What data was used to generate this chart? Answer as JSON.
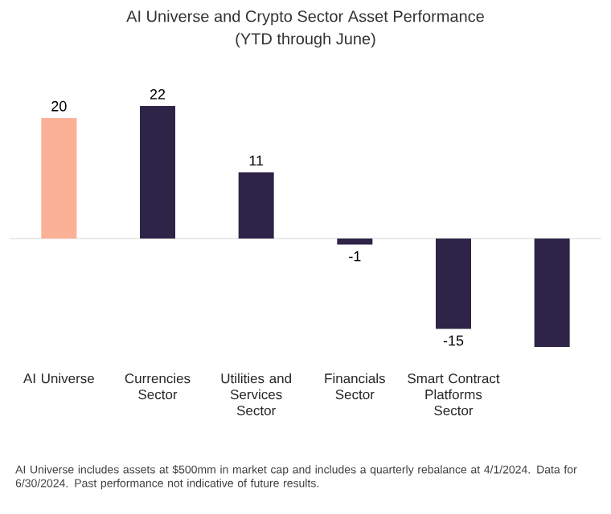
{
  "chart_data": {
    "type": "bar",
    "title": "AI Universe and Crypto Sector Asset Performance",
    "subtitle": "(YTD through June)",
    "categories": [
      "AI Universe",
      "Currencies Sector",
      "Utilities and Services Sector",
      "Financials Sector",
      "Smart Contract Platforms Sector",
      null
    ],
    "values": [
      20,
      22,
      11,
      -1,
      -15,
      -18
    ],
    "colors": [
      "#fbb196",
      "#2e2447",
      "#2e2447",
      "#2e2447",
      "#2e2447",
      "#2e2447"
    ],
    "value_labels": [
      "20",
      "22",
      "11",
      "-1",
      "-15",
      null
    ],
    "annotations": [
      "AI Universe includes assets at $500mm in market cap and includes a quarterly rebalance at 4/1/2024. Data for 6/30/2024. Past performance not indicative of future results."
    ]
  }
}
